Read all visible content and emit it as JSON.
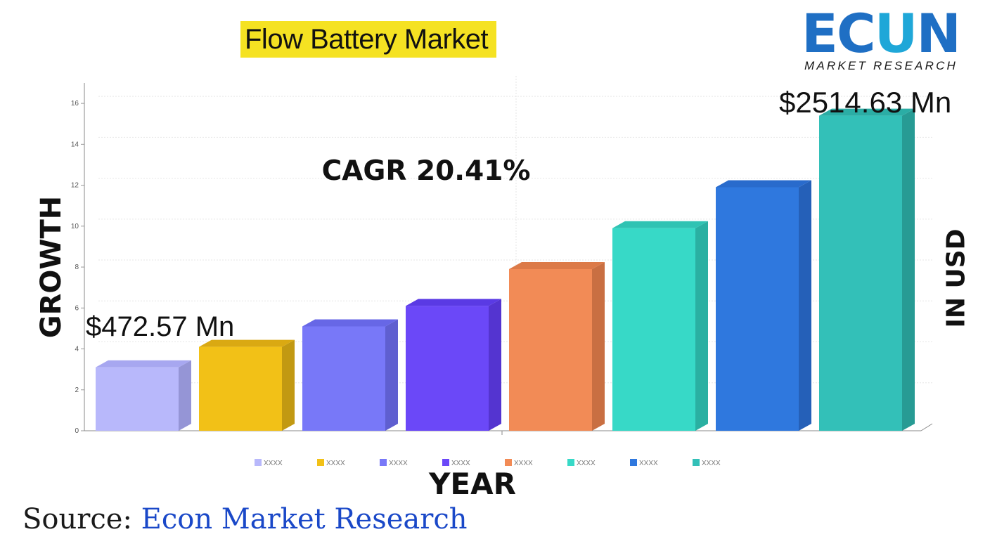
{
  "title": "Flow Battery Market",
  "logo": {
    "word_left": "EC",
    "word_mid": "U",
    "word_right": "N",
    "subtitle": "MARKET RESEARCH",
    "colors": {
      "primary": "#1f6fc4",
      "accent": "#1fa7d8"
    }
  },
  "annotations": {
    "cagr": "CAGR 20.41%",
    "start_value": "$472.57 Mn",
    "end_value": "$2514.63 Mn"
  },
  "axis": {
    "ylabel": "GROWTH",
    "ylabel_right": "IN USD",
    "xlabel": "YEAR"
  },
  "source": {
    "label": "Source:",
    "value": "Econ Market Research"
  },
  "chart_data": {
    "type": "bar",
    "categories": [
      "XXXX",
      "XXXX",
      "XXXX",
      "XXXX",
      "XXXX",
      "XXXX",
      "XXXX",
      "XXXX"
    ],
    "values": [
      3.1,
      4.1,
      5.1,
      6.1,
      7.9,
      9.9,
      11.9,
      15.4
    ],
    "ylim": [
      0,
      17
    ],
    "yticks": [
      0,
      2,
      4,
      6,
      8,
      10,
      12,
      14,
      16
    ],
    "ytick_labels": [
      "0",
      "2",
      "4",
      "6",
      "8",
      "10",
      "12",
      "14",
      "16"
    ],
    "grid": true,
    "legend": "bottom",
    "colors": [
      "#b8b8fb",
      "#f2c117",
      "#7878f8",
      "#6b48f8",
      "#f28b56",
      "#37d9c7",
      "#2f78de",
      "#33c0b8"
    ],
    "side_colors": [
      "#9595d6",
      "#c29912",
      "#5f5fd0",
      "#5434d0",
      "#c96f42",
      "#2ab0a2",
      "#2560b8",
      "#279b94"
    ],
    "top_colors": [
      "#a7a7f0",
      "#daa912",
      "#6767e6",
      "#5a3ae4",
      "#dc7a48",
      "#2fc3b3",
      "#296bcc",
      "#2badA5"
    ]
  }
}
